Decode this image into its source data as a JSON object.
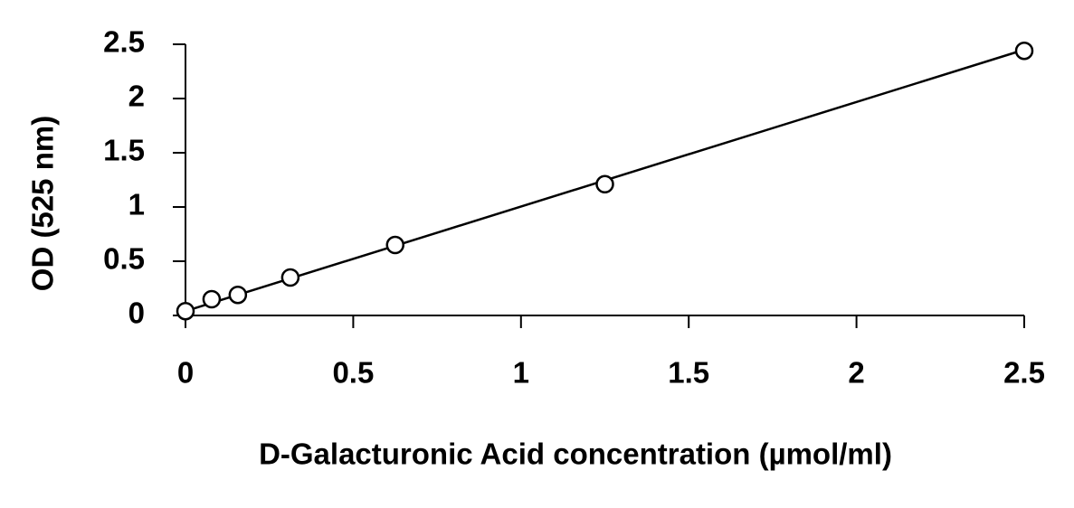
{
  "chart_data": {
    "type": "scatter",
    "x_label": "D-Galacturonic Acid concentration (µmol/ml)",
    "y_label": "OD (525 nm)",
    "x": [
      0,
      0.078,
      0.156,
      0.3125,
      0.625,
      1.25,
      2.5
    ],
    "values": [
      0.04,
      0.15,
      0.19,
      0.35,
      0.65,
      1.21,
      2.44
    ],
    "color": "#000000",
    "trendline": {
      "x": [
        0,
        2.5
      ],
      "y": [
        0.04,
        2.45
      ]
    },
    "xlim": [
      0,
      2.5
    ],
    "xticks": [
      0,
      0.5,
      1,
      1.5,
      2,
      2.5
    ],
    "ylim": [
      0,
      2.5
    ],
    "yticks": [
      0,
      0.5,
      1,
      1.5,
      2,
      2.5
    ],
    "grid": false
  }
}
